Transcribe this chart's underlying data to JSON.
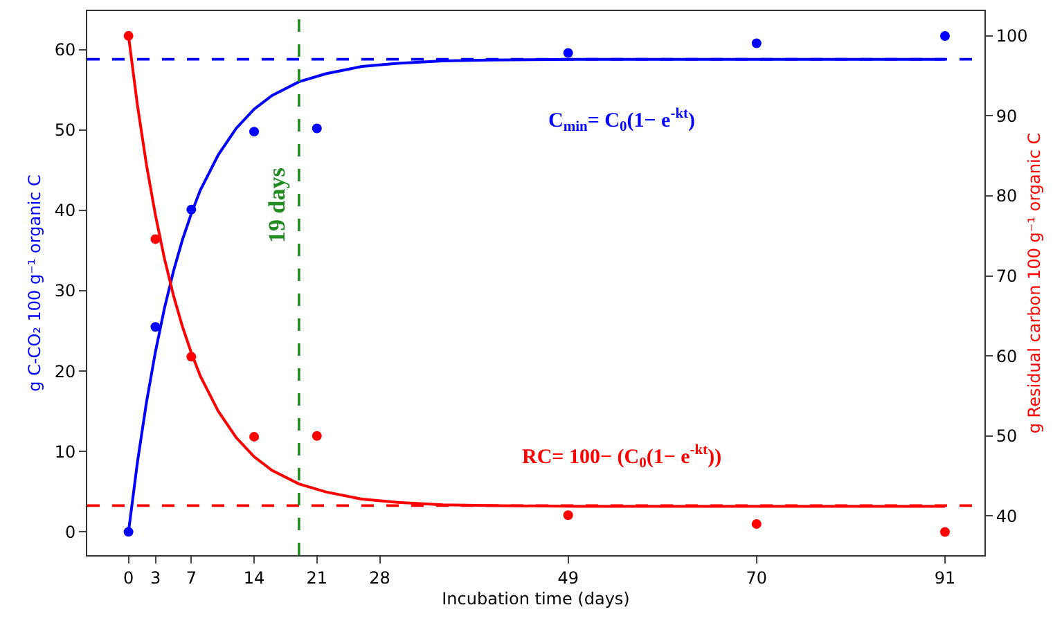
{
  "chart_data": {
    "type": "scatter",
    "xlabel": "Incubation time (days)",
    "ylabel": "g C-CO₂ 100 g⁻¹ organic C",
    "y2label": "g Residual carbon 100 g⁻¹ organic C",
    "xlim": [
      -4.6,
      95.4
    ],
    "xticks": [
      0,
      3,
      7,
      14,
      21,
      28,
      49,
      70,
      91
    ],
    "ylim": [
      -2.9,
      64.8
    ],
    "yticks": [
      0,
      10,
      20,
      30,
      40,
      50,
      60
    ],
    "y2lim": [
      35.1,
      103.1
    ],
    "y2ticks": [
      40,
      50,
      60,
      70,
      80,
      90,
      100
    ],
    "grid": false,
    "marker": "circle",
    "series": [
      {
        "color": "#0000ff",
        "x": [
          0,
          3,
          7,
          14,
          21,
          49,
          70,
          91
        ],
        "values": [
          0,
          25.5,
          40.1,
          49.8,
          50.2,
          59.6,
          60.8,
          61.7
        ]
      },
      {
        "type": "line",
        "color": "#0000ff",
        "line_style": "solid",
        "marker": "none",
        "x": [
          0,
          1,
          2,
          3,
          4,
          5,
          6,
          7,
          8,
          10,
          12,
          14,
          16,
          19,
          22,
          26,
          30,
          35,
          40,
          50,
          60,
          70,
          80,
          91
        ],
        "values": [
          0,
          8.7,
          16.1,
          22.4,
          27.8,
          32.4,
          36.3,
          39.6,
          42.5,
          46.9,
          50.2,
          52.6,
          54.3,
          56.0,
          57.0,
          57.9,
          58.3,
          58.6,
          58.7,
          58.8,
          58.8,
          58.8,
          58.8,
          58.8
        ]
      },
      {
        "color": "#ff0000",
        "axis": "y2",
        "x": [
          0,
          3,
          7,
          14,
          21,
          49,
          70,
          91
        ],
        "values": [
          100,
          74.6,
          59.9,
          49.9,
          50,
          40.1,
          39.0,
          38.0
        ]
      },
      {
        "type": "line",
        "color": "#ff0000",
        "axis": "y2",
        "line_style": "solid",
        "marker": "none",
        "x": [
          0,
          1,
          2,
          3,
          4,
          5,
          6,
          7,
          8,
          10,
          12,
          14,
          16,
          19,
          22,
          26,
          30,
          35,
          40,
          50,
          60,
          70,
          80,
          91
        ],
        "values": [
          100,
          91.3,
          83.9,
          77.6,
          72.2,
          67.6,
          63.7,
          60.4,
          57.5,
          53.1,
          49.8,
          47.4,
          45.7,
          44.0,
          43.0,
          42.1,
          41.7,
          41.4,
          41.3,
          41.2,
          41.2,
          41.2,
          41.2,
          41.2
        ]
      }
    ],
    "ref_lines": [
      {
        "axis": "y",
        "value": 58.8,
        "color": "#0000ff",
        "line_style": "dashed"
      },
      {
        "axis": "y2",
        "value": 41.3,
        "color": "#ff0000",
        "line_style": "dashed"
      },
      {
        "axis": "x",
        "value": 19,
        "label": "19 days",
        "color": "#228b22",
        "line_style": "dashed"
      }
    ],
    "annotations": [
      "C$_{min}$= C$_{0}$(1− e$^{-kt}$)",
      "RC= 100− (C$_{0}$(1− e$^{-kt}$))"
    ]
  }
}
